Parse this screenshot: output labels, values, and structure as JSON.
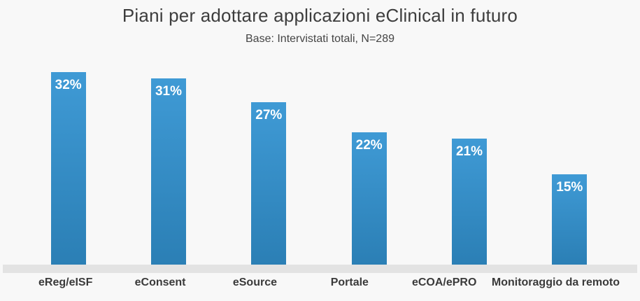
{
  "page": {
    "title": "Piani per adottare applicazioni eClinical in futuro",
    "subtitle": "Base: Intervistati totali, N=289"
  },
  "colors": {
    "background": "#f8f8f8",
    "bar_gradient_top": "#3f9ad5",
    "bar_gradient_bottom": "#2b7fb5",
    "axis_band": "#e3e3e3",
    "title_text": "#3d3d3d",
    "subtitle_text": "#454545",
    "category_text": "#3a3a3a",
    "value_text": "#ffffff"
  },
  "chart_data": {
    "type": "bar",
    "title": "Piani per adottare applicazioni eClinical in futuro",
    "subtitle": "Base: Intervistati totali, N=289",
    "categories": [
      "eReg/eISF",
      "eConsent",
      "eSource",
      "Portale",
      "eCOA/ePRO",
      "Monitoraggio da remoto"
    ],
    "values": [
      32,
      31,
      27,
      22,
      21,
      15
    ],
    "value_suffix": "%",
    "value_labels": [
      "32%",
      "31%",
      "27%",
      "22%",
      "21%",
      "15%"
    ],
    "xlabel": "",
    "ylabel": "",
    "ylim": [
      0,
      33.5
    ],
    "grid": false,
    "legend": false,
    "data_label_position": "inside-top",
    "bar_color": "#3690c9"
  }
}
